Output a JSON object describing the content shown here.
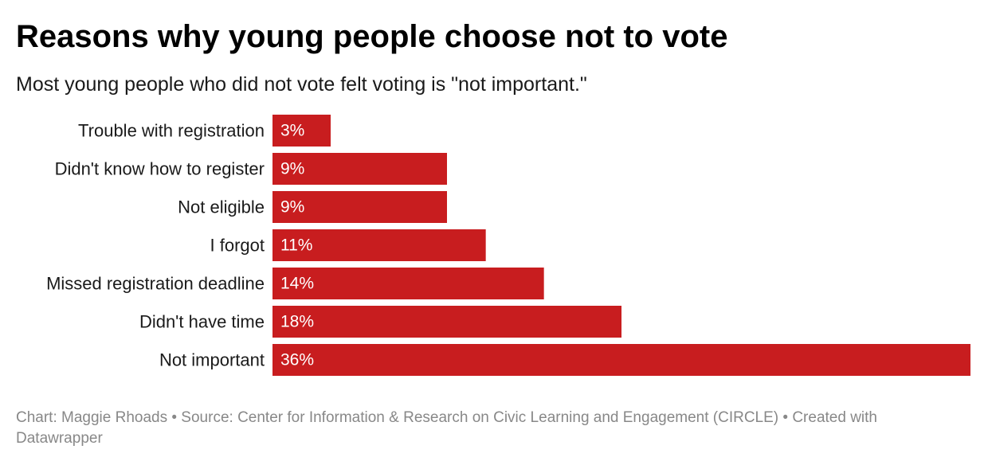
{
  "title": "Reasons why young people choose not to vote",
  "subtitle": "Most young people who did not vote felt voting is \"not important.\"",
  "footer": "Chart: Maggie Rhoads • Source: Center for Information & Research on Civic Learning and Engagement (CIRCLE) • Created with Datawrapper",
  "colors": {
    "bar": "#c81d1f",
    "value_label": "#ffffff"
  },
  "chart_data": {
    "type": "bar",
    "orientation": "horizontal",
    "categories": [
      "Trouble with registration",
      "Didn't know how to register",
      "Not eligible",
      "I forgot",
      "Missed registration deadline",
      "Didn't have time",
      "Not important"
    ],
    "values": [
      3,
      9,
      9,
      11,
      14,
      18,
      36
    ],
    "value_labels": [
      "3%",
      "9%",
      "9%",
      "11%",
      "14%",
      "18%",
      "36%"
    ],
    "unit": "%",
    "xlim": [
      0,
      36
    ],
    "grid": false,
    "legend": "none"
  }
}
